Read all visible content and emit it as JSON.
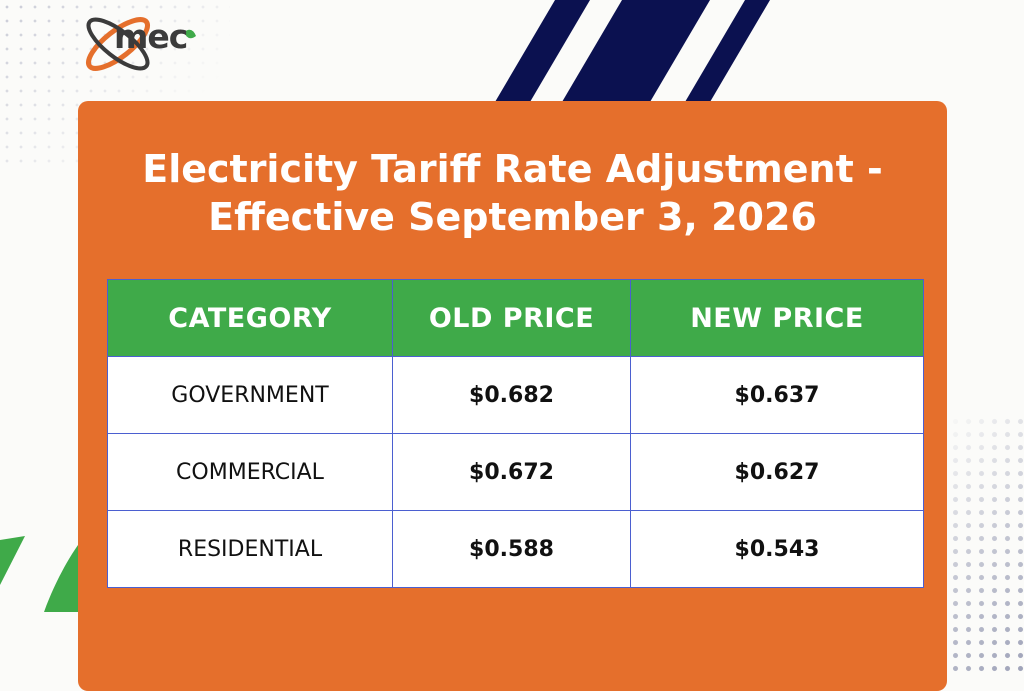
{
  "brand": {
    "logo_text": "mec",
    "colors": {
      "orange": "#e56f2c",
      "green": "#3faa49",
      "navy": "#0b1150",
      "table_border": "#4b5fd0"
    }
  },
  "title": {
    "line1": "Electricity Tariff Rate Adjustment -",
    "line2": "Effective September 3, 2026"
  },
  "table": {
    "headers": [
      "CATEGORY",
      "OLD PRICE",
      "NEW PRICE"
    ],
    "rows": [
      {
        "category": "GOVERNMENT",
        "old_price": "$0.682",
        "new_price": "$0.637"
      },
      {
        "category": "COMMERCIAL",
        "old_price": "$0.672",
        "new_price": "$0.627"
      },
      {
        "category": "RESIDENTIAL",
        "old_price": "$0.588",
        "new_price": "$0.543"
      }
    ]
  }
}
